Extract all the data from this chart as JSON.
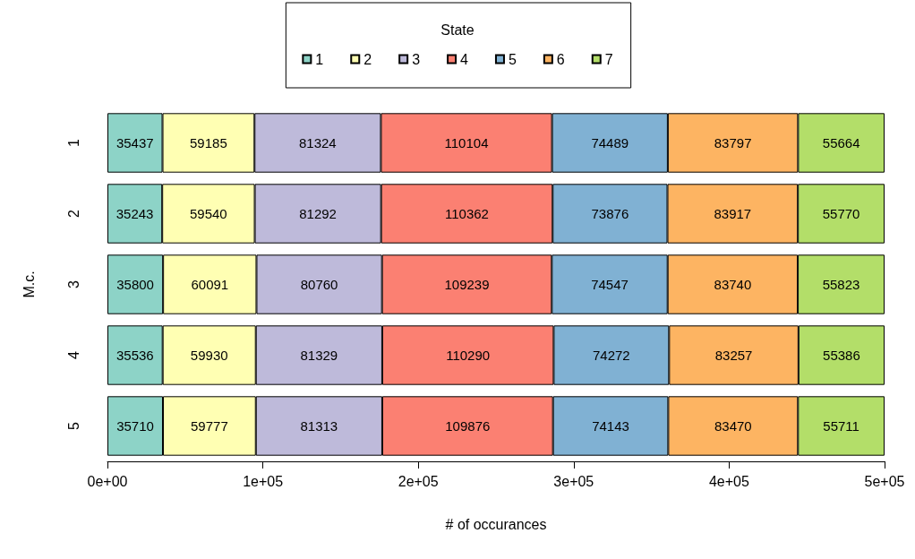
{
  "chart_data": {
    "type": "bar",
    "orientation": "horizontal",
    "stacked": true,
    "xlabel": "# of occurances",
    "ylabel": "M.c.",
    "legend_title": "State",
    "legend": "top",
    "grid": false,
    "data_labels": true,
    "categories": [
      "1",
      "2",
      "3",
      "4",
      "5"
    ],
    "xlim": [
      0,
      500000
    ],
    "xticks": [
      {
        "value": 0,
        "label": "0e+00"
      },
      {
        "value": 100000,
        "label": "1e+05"
      },
      {
        "value": 200000,
        "label": "2e+05"
      },
      {
        "value": 300000,
        "label": "3e+05"
      },
      {
        "value": 400000,
        "label": "4e+05"
      },
      {
        "value": 500000,
        "label": "5e+05"
      }
    ],
    "series": [
      {
        "name": "1",
        "color": "#8dd3c7",
        "values": [
          35437,
          35243,
          35800,
          35536,
          35710
        ]
      },
      {
        "name": "2",
        "color": "#ffffb3",
        "values": [
          59185,
          59540,
          60091,
          59930,
          59777
        ]
      },
      {
        "name": "3",
        "color": "#bebada",
        "values": [
          81324,
          81292,
          80760,
          81329,
          81313
        ]
      },
      {
        "name": "4",
        "color": "#fb8072",
        "values": [
          110104,
          110362,
          109239,
          110290,
          109876
        ]
      },
      {
        "name": "5",
        "color": "#80b1d3",
        "values": [
          74489,
          73876,
          74547,
          74272,
          74143
        ]
      },
      {
        "name": "6",
        "color": "#fdb462",
        "values": [
          83797,
          83917,
          83740,
          83257,
          83470
        ]
      },
      {
        "name": "7",
        "color": "#b3de69",
        "values": [
          55664,
          55770,
          55823,
          55386,
          55711
        ]
      }
    ]
  }
}
